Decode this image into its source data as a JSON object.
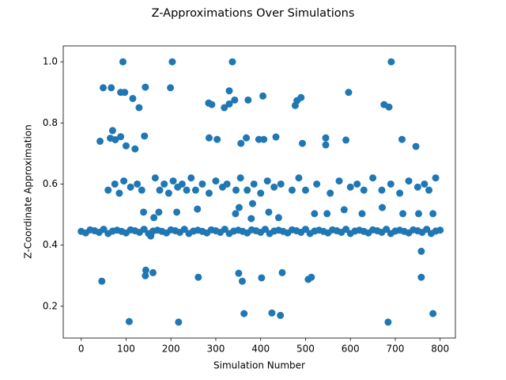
{
  "chart_data": {
    "type": "scatter",
    "title": "Z-Approximations Over Simulations",
    "x_label": "Simulation Number",
    "y_label": "Z-Coordinate Approximation",
    "color": "#1f77b4",
    "xlim": [
      -40,
      834
    ],
    "ylim": [
      0.096,
      1.052
    ],
    "xticks": [
      0,
      100,
      200,
      300,
      400,
      500,
      600,
      700,
      800
    ],
    "yticks": [
      0.2,
      0.4,
      0.6,
      0.8,
      {
        "value": 1,
        "label": "1.0"
      }
    ],
    "x": [
      0,
      10,
      20,
      30,
      40,
      50,
      60,
      70,
      80,
      90,
      100,
      110,
      120,
      130,
      140,
      150,
      160,
      170,
      180,
      190,
      200,
      210,
      220,
      230,
      240,
      250,
      260,
      270,
      280,
      290,
      300,
      310,
      320,
      330,
      340,
      350,
      360,
      370,
      380,
      390,
      400,
      410,
      420,
      430,
      440,
      450,
      460,
      470,
      480,
      490,
      500,
      510,
      520,
      530,
      540,
      550,
      560,
      570,
      580,
      590,
      600,
      610,
      620,
      630,
      640,
      650,
      660,
      670,
      680,
      690,
      700,
      710,
      720,
      730,
      740,
      750,
      760,
      770,
      780,
      790,
      800,
      60,
      75,
      85,
      95,
      110,
      125,
      135,
      165,
      175,
      185,
      195,
      205,
      215,
      225,
      235,
      245,
      255,
      270,
      285,
      300,
      315,
      325,
      345,
      355,
      370,
      385,
      400,
      415,
      430,
      445,
      470,
      485,
      500,
      525,
      555,
      575,
      600,
      615,
      630,
      650,
      670,
      690,
      710,
      730,
      750,
      765,
      775,
      790,
      49,
      67,
      93,
      97,
      88,
      115,
      129,
      143,
      199,
      203,
      337,
      330,
      342,
      372,
      405,
      284,
      291,
      319,
      330,
      477,
      481,
      490,
      596,
      691,
      675,
      686,
      42,
      70,
      65,
      76,
      88,
      100,
      120,
      141,
      285,
      303,
      356,
      368,
      396,
      407,
      434,
      493,
      545,
      545,
      590,
      715,
      746,
      139,
      162,
      173,
      213,
      259,
      344,
      352,
      379,
      382,
      418,
      440,
      520,
      548,
      586,
      626,
      671,
      717,
      752,
      784,
      46,
      107,
      143,
      144,
      160,
      217,
      261,
      351,
      359,
      363,
      402,
      425,
      444,
      448,
      506,
      513,
      684,
      758,
      758,
      784,
      155
    ],
    "y": [
      0.445,
      0.44,
      0.45,
      0.447,
      0.442,
      0.452,
      0.438,
      0.446,
      0.449,
      0.445,
      0.44,
      0.45,
      0.447,
      0.442,
      0.452,
      0.438,
      0.446,
      0.449,
      0.445,
      0.44,
      0.45,
      0.447,
      0.442,
      0.452,
      0.438,
      0.446,
      0.449,
      0.445,
      0.44,
      0.45,
      0.447,
      0.442,
      0.452,
      0.438,
      0.446,
      0.449,
      0.445,
      0.44,
      0.45,
      0.447,
      0.442,
      0.452,
      0.438,
      0.446,
      0.449,
      0.445,
      0.44,
      0.45,
      0.447,
      0.442,
      0.452,
      0.438,
      0.446,
      0.449,
      0.445,
      0.44,
      0.45,
      0.447,
      0.442,
      0.452,
      0.438,
      0.446,
      0.449,
      0.445,
      0.44,
      0.45,
      0.447,
      0.442,
      0.452,
      0.438,
      0.446,
      0.449,
      0.445,
      0.44,
      0.45,
      0.447,
      0.442,
      0.452,
      0.438,
      0.446,
      0.449,
      0.58,
      0.6,
      0.57,
      0.61,
      0.59,
      0.6,
      0.58,
      0.62,
      0.58,
      0.6,
      0.57,
      0.61,
      0.59,
      0.6,
      0.58,
      0.62,
      0.58,
      0.6,
      0.57,
      0.61,
      0.59,
      0.6,
      0.58,
      0.62,
      0.58,
      0.6,
      0.57,
      0.61,
      0.59,
      0.6,
      0.58,
      0.62,
      0.58,
      0.6,
      0.57,
      0.61,
      0.59,
      0.6,
      0.58,
      0.62,
      0.58,
      0.6,
      0.57,
      0.61,
      0.59,
      0.6,
      0.58,
      0.62,
      0.915,
      0.915,
      1.0,
      0.9,
      0.9,
      0.88,
      0.85,
      0.917,
      0.915,
      1.0,
      1.0,
      0.905,
      0.875,
      0.875,
      0.888,
      0.865,
      0.86,
      0.85,
      0.862,
      0.857,
      0.873,
      0.883,
      0.9,
      1.0,
      0.86,
      0.852,
      0.74,
      0.775,
      0.75,
      0.745,
      0.755,
      0.725,
      0.715,
      0.757,
      0.751,
      0.746,
      0.733,
      0.751,
      0.746,
      0.746,
      0.754,
      0.733,
      0.751,
      0.728,
      0.744,
      0.746,
      0.723,
      0.508,
      0.49,
      0.508,
      0.508,
      0.518,
      0.503,
      0.523,
      0.487,
      0.536,
      0.508,
      0.49,
      0.503,
      0.503,
      0.516,
      0.503,
      0.523,
      0.503,
      0.503,
      0.503,
      0.282,
      0.15,
      0.3,
      0.318,
      0.31,
      0.148,
      0.295,
      0.308,
      0.282,
      0.176,
      0.293,
      0.178,
      0.17,
      0.31,
      0.288,
      0.295,
      0.148,
      0.38,
      0.295,
      0.176,
      0.43
    ]
  }
}
